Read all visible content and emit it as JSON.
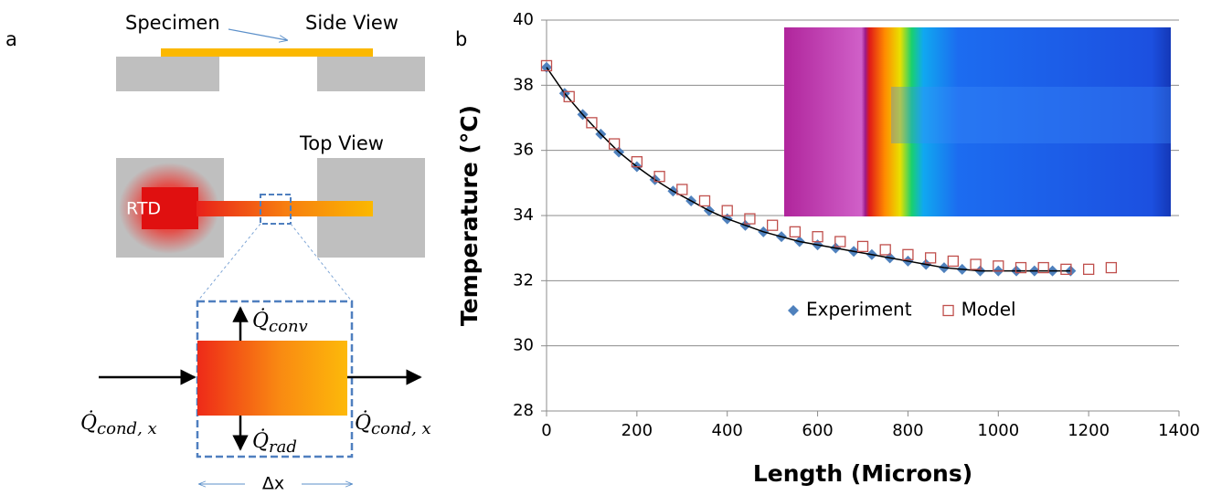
{
  "panel_labels": [
    "a",
    "b"
  ],
  "diagram": {
    "specimen": "Specimen",
    "side_view": "Side View",
    "top_view": "Top View",
    "rtd": "RTD",
    "q_conv": {
      "symbol": "Q̇",
      "subscript": "conv"
    },
    "q_cond_in": {
      "symbol": "Q̇",
      "subscript": "cond, x"
    },
    "q_cond_out": {
      "symbol": "Q̇",
      "subscript": "cond, x"
    },
    "q_rad": {
      "symbol": "Q̇",
      "subscript": "rad"
    },
    "dx": "Δx"
  },
  "chart_data": {
    "type": "scatter",
    "y_label": "Temperature  (°C)",
    "x_label": "Length (Microns)",
    "xlim": [
      0,
      1400
    ],
    "xticks": [
      0,
      200,
      400,
      600,
      800,
      1000,
      1200,
      1400
    ],
    "ylim": [
      28,
      40
    ],
    "yticks": [
      28,
      30,
      32,
      34,
      36,
      38,
      40
    ],
    "grid": true,
    "legend": "center",
    "series": [
      {
        "name": "Experiment",
        "color": "#4f81bd",
        "marker": "diamond",
        "trend_color": "#000000",
        "x": [
          0,
          40,
          80,
          120,
          160,
          200,
          240,
          280,
          320,
          360,
          400,
          440,
          480,
          520,
          560,
          600,
          640,
          680,
          720,
          760,
          800,
          840,
          880,
          920,
          960,
          1000,
          1040,
          1080,
          1120,
          1160
        ],
        "values": [
          38.55,
          37.75,
          37.1,
          36.5,
          35.95,
          35.5,
          35.1,
          34.75,
          34.45,
          34.15,
          33.9,
          33.7,
          33.5,
          33.35,
          33.2,
          33.1,
          33.0,
          32.9,
          32.8,
          32.7,
          32.6,
          32.5,
          32.4,
          32.35,
          32.3,
          32.3,
          32.3,
          32.3,
          32.3,
          32.3
        ]
      },
      {
        "name": "Model",
        "color": "#c0504d",
        "marker": "square",
        "x": [
          0,
          50,
          100,
          150,
          200,
          250,
          300,
          350,
          400,
          450,
          500,
          550,
          600,
          650,
          700,
          750,
          800,
          850,
          900,
          950,
          1000,
          1050,
          1100,
          1150,
          1200,
          1250
        ],
        "values": [
          38.6,
          37.65,
          36.85,
          36.2,
          35.65,
          35.2,
          34.8,
          34.45,
          34.15,
          33.9,
          33.7,
          33.5,
          33.35,
          33.2,
          33.05,
          32.95,
          32.8,
          32.7,
          32.6,
          32.5,
          32.45,
          32.4,
          32.4,
          32.35,
          32.35,
          32.4
        ]
      }
    ]
  }
}
